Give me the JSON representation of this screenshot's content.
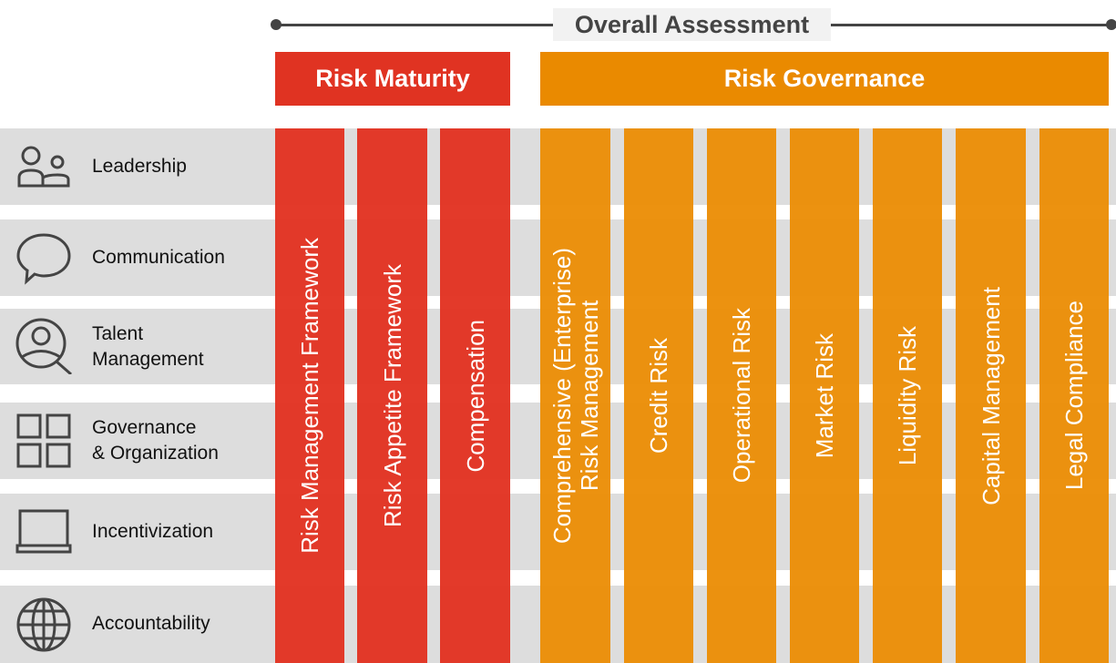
{
  "overall": {
    "label": "Overall Assessment"
  },
  "groups": [
    {
      "label": "Risk Maturity",
      "color": "#e03322"
    },
    {
      "label": "Risk Governance",
      "color": "#ea8a00"
    }
  ],
  "rows": [
    {
      "label": "Leadership",
      "icon": "people-icon"
    },
    {
      "label": "Communication",
      "icon": "speech-bubble-icon"
    },
    {
      "label": "Talent\nManagement",
      "icon": "person-search-icon"
    },
    {
      "label": "Governance\n& Organization",
      "icon": "grid-icon"
    },
    {
      "label": "Incentivization",
      "icon": "laptop-icon"
    },
    {
      "label": "Accountability",
      "icon": "globe-icon"
    }
  ],
  "columns": [
    {
      "label": "Risk Management Framework"
    },
    {
      "label": "Risk Appetite Framework"
    },
    {
      "label": "Compensation"
    },
    {
      "label": "Comprehensive (Enterprise)\nRisk Management"
    },
    {
      "label": "Credit Risk"
    },
    {
      "label": "Operational Risk"
    },
    {
      "label": "Market Risk"
    },
    {
      "label": "Liquidity Risk"
    },
    {
      "label": "Capital Management"
    },
    {
      "label": "Legal Compliance"
    }
  ]
}
